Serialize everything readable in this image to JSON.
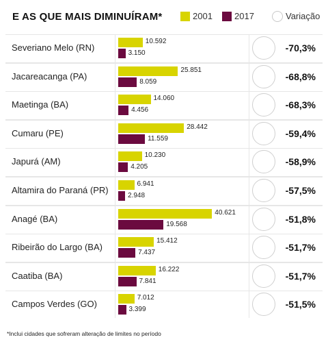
{
  "header": {
    "title": "E AS QUE MAIS DIMINUÍRAM*",
    "legend": {
      "label_2001": "2001",
      "label_2017": "2017",
      "label_variation": "Variação"
    }
  },
  "colors": {
    "bar_2001": "#d8d400",
    "bar_2017": "#6b0a3f",
    "grid_background": "#e6e6e6"
  },
  "chart_data": {
    "type": "bar",
    "orientation": "horizontal",
    "title": "E AS QUE MAIS DIMINUÍRAM*",
    "categories": [
      "Severiano Melo (RN)",
      "Jacareacanga (PA)",
      "Maetinga (BA)",
      "Cumaru (PE)",
      "Japurá (AM)",
      "Altamira do Paraná (PR)",
      "Anagé (BA)",
      "Ribeirão do Largo (BA)",
      "Caatiba (BA)",
      "Campos Verdes (GO)"
    ],
    "series": [
      {
        "name": "2001",
        "values": [
          10592,
          25851,
          14060,
          28442,
          10230,
          6941,
          40621,
          15412,
          16222,
          7012
        ],
        "labels": [
          "10.592",
          "25.851",
          "14.060",
          "28.442",
          "10.230",
          "6.941",
          "40.621",
          "15.412",
          "16.222",
          "7.012"
        ]
      },
      {
        "name": "2017",
        "values": [
          3150,
          8059,
          4456,
          11559,
          4205,
          2948,
          19568,
          7437,
          7841,
          3399
        ],
        "labels": [
          "3.150",
          "8.059",
          "4.456",
          "11.559",
          "4.205",
          "2.948",
          "19.568",
          "7.437",
          "7.841",
          "3.399"
        ]
      }
    ],
    "variation": [
      "-70,3%",
      "-68,8%",
      "-68,3%",
      "-59,4%",
      "-58,9%",
      "-57,5%",
      "-51,8%",
      "-51,7%",
      "-51,7%",
      "-51,5%"
    ],
    "xlim": [
      0,
      42000
    ]
  },
  "footnote": "*Inclui cidades que sofreram alteração de limites no período"
}
